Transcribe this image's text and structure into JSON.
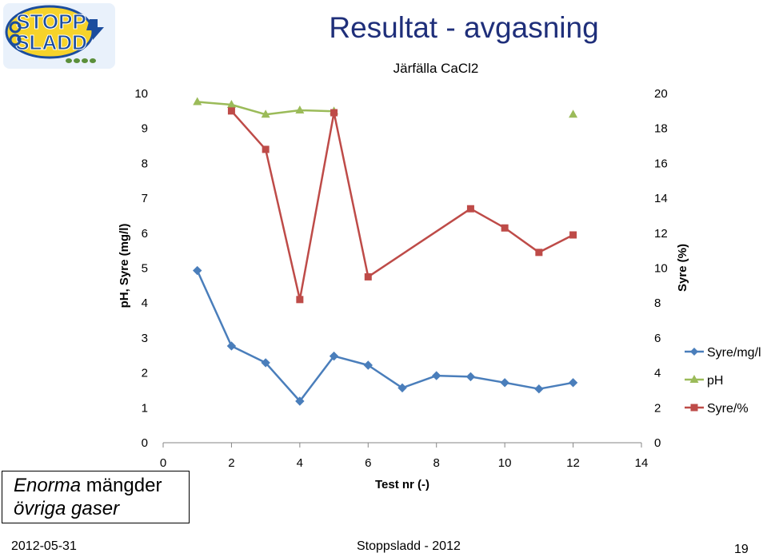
{
  "slide": {
    "title": "Resultat - avgasning",
    "logo_line1": "STOPP",
    "logo_line2": "SLADD",
    "note_line1_italic": "Enorma",
    "note_line1_rest": " mängder",
    "note_line2": "övriga gaser",
    "footer_date": "2012-05-31",
    "footer_center": "Stoppsladd - 2012",
    "page_number": "19"
  },
  "colors": {
    "title": "#1f2f7a",
    "syre_mgl": "#4a7ebb",
    "ph": "#9bbb59",
    "syre_pct": "#be4b48",
    "grid": "#d9d9d9",
    "logo_blue": "#1b4d9e",
    "logo_yellow": "#f6d32b"
  },
  "chart_data": {
    "type": "line",
    "title": "Järfälla CaCl2",
    "xlabel": "Test nr (-)",
    "ylabel": "pH, Syre (mg/l)",
    "y2label": "Syre (%)",
    "xlim": [
      0,
      14
    ],
    "xticks": [
      0,
      2,
      4,
      6,
      8,
      10,
      12,
      14
    ],
    "ylim": [
      0,
      10
    ],
    "yticks": [
      0,
      1,
      2,
      3,
      4,
      5,
      6,
      7,
      8,
      9,
      10
    ],
    "y2lim": [
      0,
      20
    ],
    "y2ticks": [
      0,
      2,
      4,
      6,
      8,
      10,
      12,
      14,
      16,
      18,
      20
    ],
    "grid": false,
    "legend_position": "right",
    "series": [
      {
        "name": "Syre/mg/l",
        "axis": "left",
        "marker": "diamond",
        "color": "#4a7ebb",
        "x": [
          1,
          2,
          3,
          4,
          5,
          6,
          7,
          8,
          9,
          10,
          11,
          12
        ],
        "y": [
          4.93,
          2.77,
          2.29,
          1.19,
          2.48,
          2.22,
          1.57,
          1.92,
          1.89,
          1.72,
          1.54,
          1.72
        ]
      },
      {
        "name": "pH",
        "axis": "left",
        "marker": "triangle",
        "color": "#9bbb59",
        "x": [
          1,
          2,
          3,
          4,
          5,
          12
        ],
        "y": [
          9.76,
          9.68,
          9.4,
          9.52,
          9.49,
          9.4
        ],
        "segments": [
          [
            0,
            4
          ],
          [
            5,
            5
          ]
        ]
      },
      {
        "name": "Syre/%",
        "axis": "right",
        "marker": "square",
        "color": "#be4b48",
        "x": [
          2,
          3,
          4,
          5,
          6,
          9,
          10,
          11,
          12
        ],
        "y": [
          19.0,
          16.8,
          8.2,
          18.9,
          9.5,
          13.4,
          12.3,
          10.9,
          11.9
        ]
      }
    ]
  }
}
